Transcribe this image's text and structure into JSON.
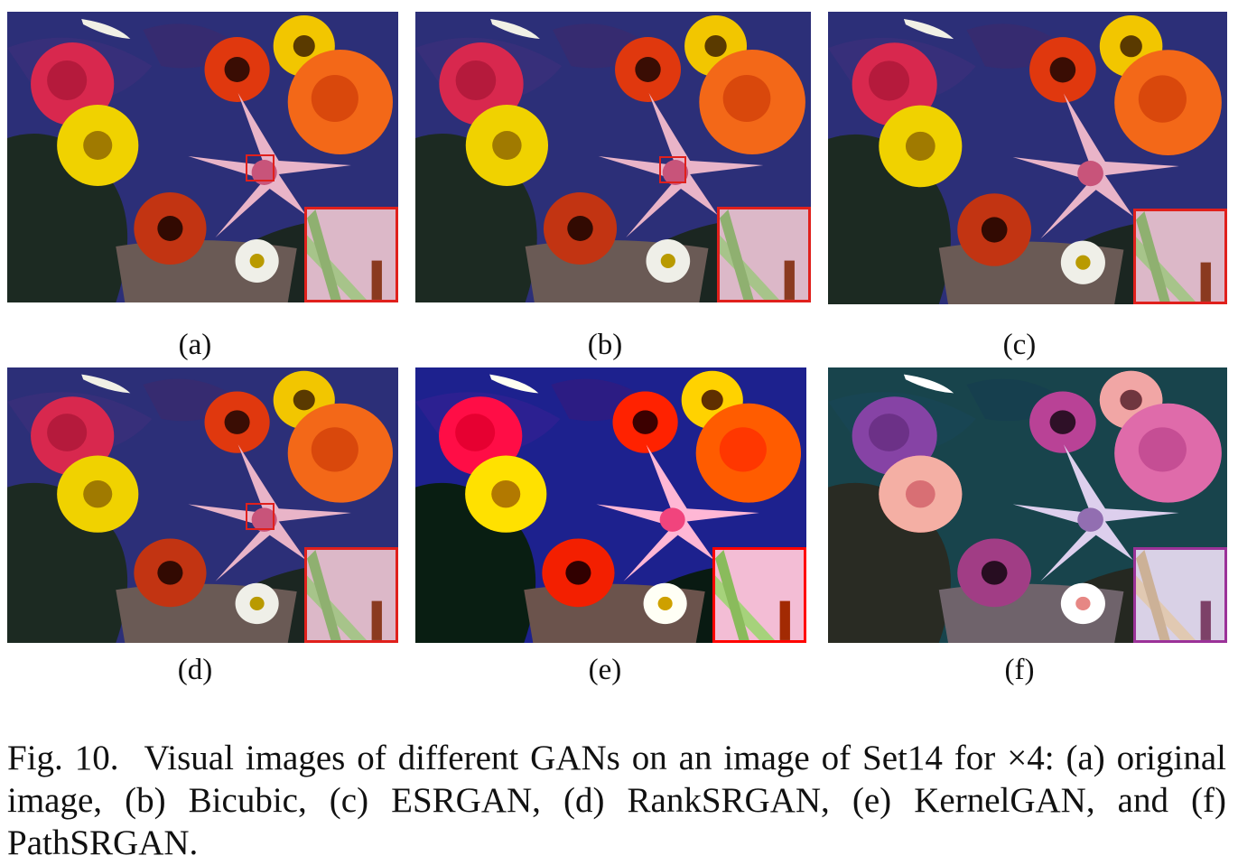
{
  "figure": {
    "label": "Fig. 10.",
    "caption": "Visual images of different GANs on an image of Set14 for ×4: (a) original image, (b) Bicubic, (c) ESRGAN, (d) RankSRGAN, (e) KernelGAN, and (f) PathSRGAN.",
    "panels": [
      {
        "id": "a",
        "label": "(a)"
      },
      {
        "id": "b",
        "label": "(b)"
      },
      {
        "id": "c",
        "label": "(c)"
      },
      {
        "id": "d",
        "label": "(d)"
      },
      {
        "id": "e",
        "label": "(e)"
      },
      {
        "id": "f",
        "label": "(f)"
      }
    ]
  },
  "colors": {
    "highlight_box": "#e0201c",
    "background": "#2b2d6e"
  }
}
